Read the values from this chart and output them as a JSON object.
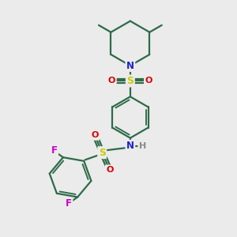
{
  "bg_color": "#ebebeb",
  "bond_color": "#2d6b4a",
  "atom_colors": {
    "N": "#2020cc",
    "S": "#cccc00",
    "O": "#dd0000",
    "F": "#cc00cc",
    "H": "#888888",
    "C": "#2d6b4a"
  },
  "bond_width": 1.6
}
